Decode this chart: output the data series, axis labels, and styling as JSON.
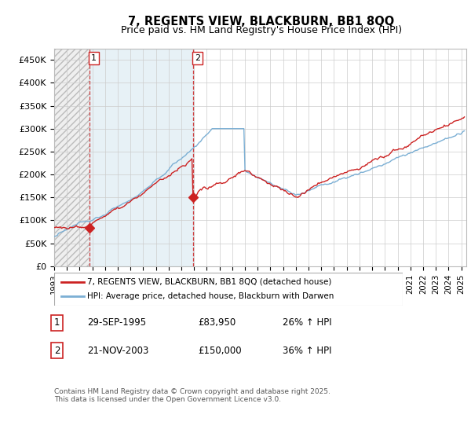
{
  "title": "7, REGENTS VIEW, BLACKBURN, BB1 8QQ",
  "subtitle": "Price paid vs. HM Land Registry's House Price Index (HPI)",
  "ylim": [
    0,
    475000
  ],
  "yticks": [
    0,
    50000,
    100000,
    150000,
    200000,
    250000,
    300000,
    350000,
    400000,
    450000
  ],
  "ytick_labels": [
    "£0",
    "£50K",
    "£100K",
    "£150K",
    "£200K",
    "£250K",
    "£300K",
    "£350K",
    "£400K",
    "£450K"
  ],
  "xstart_year": 1993,
  "xend_year": 2025,
  "hpi_color": "#7BAFD4",
  "property_color": "#CC2222",
  "marker_color": "#CC2222",
  "sale1_date_num": 1995.75,
  "sale1_price": 83950,
  "sale1_label": "1",
  "sale2_date_num": 2003.9,
  "sale2_price": 150000,
  "sale2_label": "2",
  "legend_property": "7, REGENTS VIEW, BLACKBURN, BB1 8QQ (detached house)",
  "legend_hpi": "HPI: Average price, detached house, Blackburn with Darwen",
  "table_row1": [
    "1",
    "29-SEP-1995",
    "£83,950",
    "26% ↑ HPI"
  ],
  "table_row2": [
    "2",
    "21-NOV-2003",
    "£150,000",
    "36% ↑ HPI"
  ],
  "footer": "Contains HM Land Registry data © Crown copyright and database right 2025.\nThis data is licensed under the Open Government Licence v3.0.",
  "hatch_bg": "#E8E8E8",
  "light_blue_bg": "#D8E8F0"
}
